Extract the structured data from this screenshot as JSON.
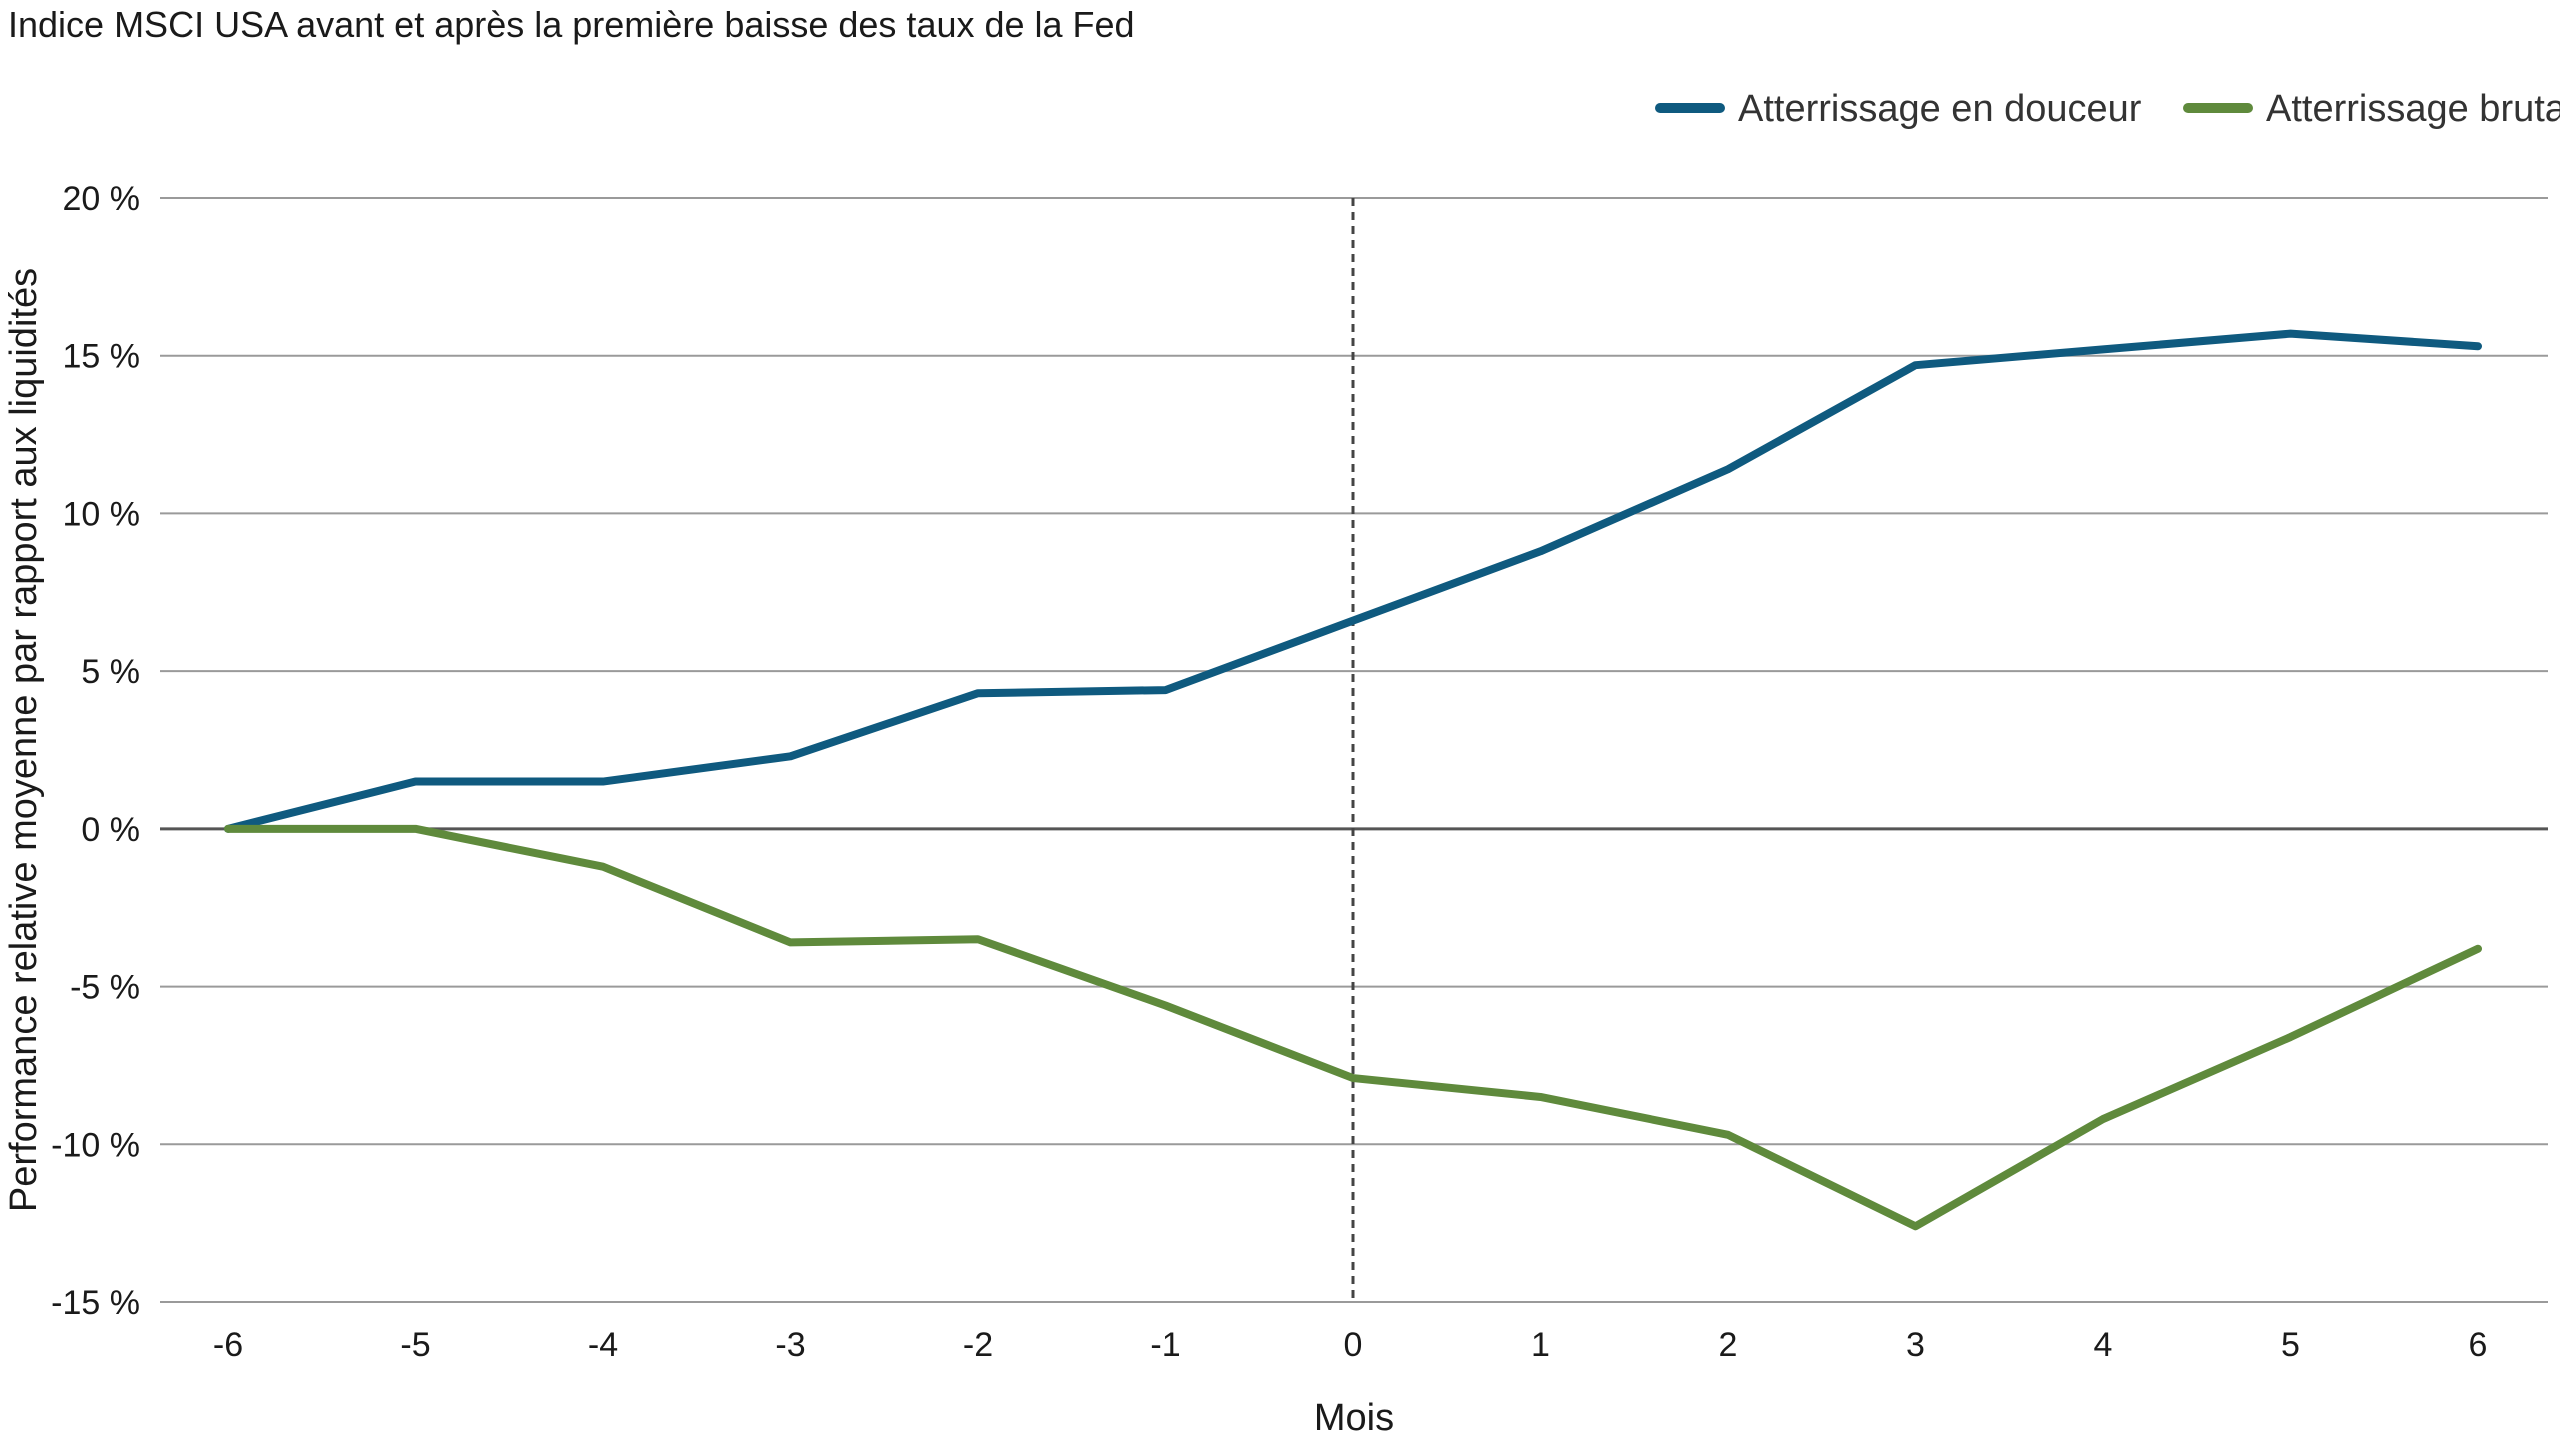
{
  "title": "Indice MSCI USA avant et après la première baisse des taux de la Fed",
  "legend": [
    {
      "label": "Atterrissage en douceur",
      "color": "#0f5a7f"
    },
    {
      "label": "Atterrissage brutal",
      "color": "#5f8a3c"
    }
  ],
  "chart_data": {
    "type": "line",
    "title": "Indice MSCI USA avant et après la première baisse des taux de la Fed",
    "xlabel": "Mois",
    "ylabel": "Performance relative moyenne par rapport aux liquidités",
    "x": [
      -6,
      -5,
      -4,
      -3,
      -2,
      -1,
      0,
      1,
      2,
      3,
      4,
      5,
      6
    ],
    "x_tick_labels": [
      "-6",
      "-5",
      "-4",
      "-3",
      "-2",
      "-1",
      "0",
      "1",
      "2",
      "3",
      "4",
      "5",
      "6"
    ],
    "y_ticks": [
      20,
      15,
      10,
      5,
      0,
      -5,
      -10,
      -15
    ],
    "y_tick_labels": [
      "20 %",
      "15 %",
      "10 %",
      "5 %",
      "0 %",
      "-5 %",
      "-10 %",
      "-15 %"
    ],
    "ylim": [
      -15,
      20
    ],
    "grid": true,
    "legend_position": "top-right",
    "reference_line": {
      "x": 0,
      "style": "dashed"
    },
    "series": [
      {
        "name": "Atterrissage en douceur",
        "color": "#0f5a7f",
        "values": [
          0,
          1.5,
          1.5,
          2.3,
          4.3,
          4.4,
          6.6,
          8.8,
          11.4,
          14.7,
          15.2,
          15.7,
          15.3
        ]
      },
      {
        "name": "Atterrissage brutal",
        "color": "#5f8a3c",
        "values": [
          0,
          0,
          -1.2,
          -3.6,
          -3.5,
          -5.6,
          -7.9,
          -8.5,
          -9.7,
          -12.6,
          -9.2,
          -6.6,
          -3.8
        ]
      }
    ]
  }
}
